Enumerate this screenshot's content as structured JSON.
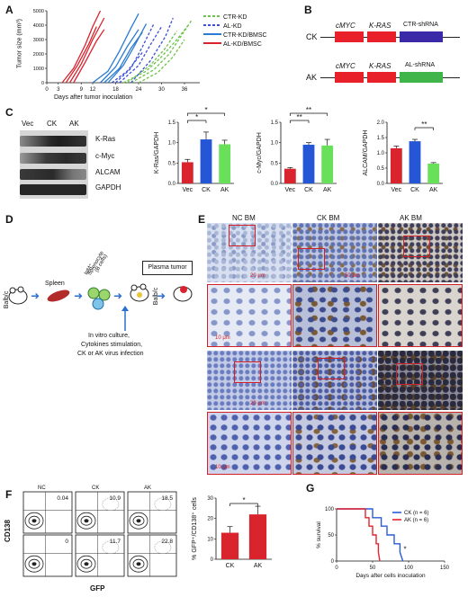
{
  "panels": {
    "A": {
      "label": "A",
      "ylabel": "Tumor size (mm³)",
      "xlabel": "Days after tumor inoculation",
      "yticks": [
        "0",
        "1000",
        "2000",
        "3000",
        "4000",
        "5000"
      ],
      "xticks": [
        "0",
        "3",
        "9",
        "12",
        "18",
        "24",
        "30",
        "36"
      ],
      "legend": [
        "CTR-KD",
        "AL-KD",
        "CTR-KD/BMSC",
        "AL-KD/BMSC"
      ],
      "colors": {
        "ctr_kd": "#6cc24a",
        "al_kd": "#3b4fd8",
        "ctr_bmsc": "#2a7bd1",
        "al_bmsc": "#d9232d"
      }
    },
    "B": {
      "label": "B",
      "rows": [
        {
          "name": "CK",
          "gene1": "cMYC",
          "gene2": "K-RAS",
          "shrna": "CTR-shRNA",
          "color": "#3b2aa8"
        },
        {
          "name": "AK",
          "gene1": "cMYC",
          "gene2": "K-RAS",
          "shrna": "AL-shRNA",
          "color": "#3fb54a"
        }
      ]
    },
    "C": {
      "label": "C",
      "blot_cols": [
        "Vec",
        "CK",
        "AK"
      ],
      "blot_rows": [
        "K-Ras",
        "c-Myc",
        "ALCAM",
        "GAPDH"
      ],
      "charts": [
        {
          "ylabel": "K-Ras/GAPDH",
          "sig": [
            "*",
            "*"
          ]
        },
        {
          "ylabel": "c-Myc/GAPDH",
          "sig": [
            "**",
            "**"
          ]
        },
        {
          "ylabel": "ALCAM/GAPDH",
          "sig": [
            "**"
          ]
        }
      ]
    },
    "D": {
      "label": "D",
      "mouse1": "Balb/c",
      "spleen": "Spleen",
      "splenocyte_line1": "IgM⁺",
      "splenocyte_line2": "Splenocyte",
      "splenocyte_line3": "(B cells)",
      "mouse2": "Balb/c",
      "plasma": "Plasma tumor",
      "notes": [
        "In vitro culture,",
        "Cytokines stimulation,",
        "CK or AK virus infection"
      ]
    },
    "E": {
      "label": "E",
      "cols": [
        "NC BM",
        "CK BM",
        "AK BM"
      ],
      "scale_a": "20 μm",
      "scale_b": "50 μm",
      "scale_c": "10 μm"
    },
    "F": {
      "label": "F",
      "flow_cols": [
        "NC",
        "CK",
        "AK"
      ],
      "flow_top": [
        "0.04",
        "10.9",
        "18.5"
      ],
      "flow_bottom": [
        "0",
        "11.7",
        "22.8"
      ],
      "flow_ylabel": "CD138",
      "flow_xlabel": "GFP",
      "bar_ylabel": "% GFP⁺/CD138⁺ cells",
      "bar_sig": "*"
    },
    "G": {
      "label": "G",
      "ylabel": "% survival",
      "xlabel": "Days after cells inoculation",
      "legend": [
        "CK (n = 6)",
        "AK (n = 6)"
      ],
      "sig": "*",
      "colors": {
        "ck": "#2a5bd7",
        "ak": "#e4232c"
      }
    }
  },
  "chart_data": [
    {
      "type": "bar",
      "panel": "C-1",
      "categories": [
        "Vec",
        "CK",
        "AK"
      ],
      "values": [
        0.52,
        1.08,
        0.96
      ],
      "errors": [
        0.07,
        0.18,
        0.1
      ],
      "ylabel": "K-Ras/GAPDH",
      "ylim": [
        0,
        1.5
      ],
      "yticks": [
        "0.0",
        "0.5",
        "1.0",
        "1.5"
      ]
    },
    {
      "type": "bar",
      "panel": "C-2",
      "categories": [
        "Vec",
        "CK",
        "AK"
      ],
      "values": [
        0.36,
        0.95,
        0.93
      ],
      "errors": [
        0.03,
        0.05,
        0.15
      ],
      "ylabel": "c-Myc/GAPDH",
      "ylim": [
        0,
        1.5
      ],
      "yticks": [
        "0.0",
        "0.5",
        "1.0",
        "1.5"
      ]
    },
    {
      "type": "bar",
      "panel": "C-3",
      "categories": [
        "Vec",
        "CK",
        "AK"
      ],
      "values": [
        1.15,
        1.38,
        0.65
      ],
      "errors": [
        0.07,
        0.06,
        0.03
      ],
      "ylabel": "ALCAM/GAPDH",
      "ylim": [
        0,
        2.0
      ],
      "yticks": [
        "0.0",
        "0.5",
        "1.0",
        "1.5",
        "2.0"
      ]
    },
    {
      "type": "bar",
      "panel": "F",
      "categories": [
        "CK",
        "AK"
      ],
      "values": [
        13,
        22
      ],
      "errors": [
        3,
        4
      ],
      "ylabel": "% GFP⁺/CD138⁺ cells",
      "ylim": [
        0,
        30
      ],
      "yticks": [
        "0",
        "10",
        "20",
        "30"
      ]
    },
    {
      "type": "line",
      "panel": "G",
      "xlim": [
        0,
        150
      ],
      "ylim": [
        0,
        100
      ],
      "xticks": [
        "0",
        "50",
        "100",
        "150"
      ],
      "yticks": [
        "0",
        "50",
        "100"
      ],
      "series": [
        {
          "name": "CK (n = 6)",
          "x": [
            0,
            50,
            50,
            62,
            62,
            70,
            70,
            80,
            80,
            88,
            88,
            92
          ],
          "y": [
            100,
            100,
            83,
            83,
            67,
            67,
            50,
            50,
            33,
            33,
            17,
            0
          ]
        },
        {
          "name": "AK (n = 6)",
          "x": [
            0,
            40,
            40,
            45,
            45,
            50,
            50,
            55,
            55,
            58,
            58,
            60
          ],
          "y": [
            100,
            100,
            83,
            83,
            67,
            67,
            50,
            50,
            33,
            33,
            17,
            0
          ]
        }
      ],
      "sig": "*"
    },
    {
      "type": "line",
      "panel": "A",
      "xlim": [
        0,
        40
      ],
      "ylim": [
        0,
        5000
      ],
      "series": [
        {
          "name": "CTR-KD",
          "color": "#6cc24a",
          "dash": true,
          "curves": [
            [
              [
                22,
                0
              ],
              [
                28,
                900
              ],
              [
                32,
                2000
              ],
              [
                36,
                3600
              ],
              [
                38,
                4400
              ]
            ],
            [
              [
                20,
                0
              ],
              [
                26,
                800
              ],
              [
                30,
                1800
              ],
              [
                34,
                3000
              ],
              [
                37,
                4000
              ]
            ],
            [
              [
                24,
                0
              ],
              [
                29,
                700
              ],
              [
                33,
                1800
              ],
              [
                36,
                3000
              ]
            ],
            [
              [
                21,
                0
              ],
              [
                27,
                1200
              ],
              [
                31,
                2400
              ],
              [
                34,
                3600
              ]
            ]
          ]
        },
        {
          "name": "AL-KD",
          "color": "#3b4fd8",
          "dash": true,
          "curves": [
            [
              [
                18,
                0
              ],
              [
                22,
                1000
              ],
              [
                25,
                2500
              ],
              [
                28,
                4100
              ]
            ],
            [
              [
                19,
                0
              ],
              [
                24,
                1200
              ],
              [
                27,
                2600
              ],
              [
                30,
                3900
              ]
            ],
            [
              [
                22,
                0
              ],
              [
                27,
                1500
              ],
              [
                31,
                3200
              ],
              [
                33,
                4500
              ]
            ],
            [
              [
                17,
                0
              ],
              [
                21,
                800
              ],
              [
                25,
                2100
              ]
            ]
          ]
        },
        {
          "name": "CTR-KD/BMSC",
          "color": "#2a7bd1",
          "dash": false,
          "curves": [
            [
              [
                12,
                0
              ],
              [
                16,
                800
              ],
              [
                19,
                2200
              ],
              [
                22,
                3800
              ],
              [
                24,
                4800
              ]
            ],
            [
              [
                14,
                0
              ],
              [
                18,
                1100
              ],
              [
                21,
                2500
              ],
              [
                24,
                3700
              ]
            ],
            [
              [
                16,
                0
              ],
              [
                20,
                1200
              ],
              [
                23,
                2600
              ],
              [
                26,
                4100
              ]
            ],
            [
              [
                15,
                0
              ],
              [
                19,
                1000
              ],
              [
                22,
                2400
              ],
              [
                25,
                3500
              ]
            ]
          ]
        },
        {
          "name": "AL-KD/BMSC",
          "color": "#d9232d",
          "dash": false,
          "curves": [
            [
              [
                4,
                0
              ],
              [
                7,
                1000
              ],
              [
                10,
                2600
              ],
              [
                12,
                3900
              ],
              [
                14,
                5000
              ]
            ],
            [
              [
                5,
                0
              ],
              [
                8,
                1200
              ],
              [
                11,
                2700
              ],
              [
                13,
                3900
              ]
            ],
            [
              [
                6,
                0
              ],
              [
                9,
                1300
              ],
              [
                12,
                3000
              ],
              [
                15,
                4500
              ]
            ],
            [
              [
                7,
                0
              ],
              [
                10,
                1400
              ],
              [
                13,
                2900
              ],
              [
                15,
                3700
              ]
            ]
          ]
        }
      ]
    }
  ]
}
